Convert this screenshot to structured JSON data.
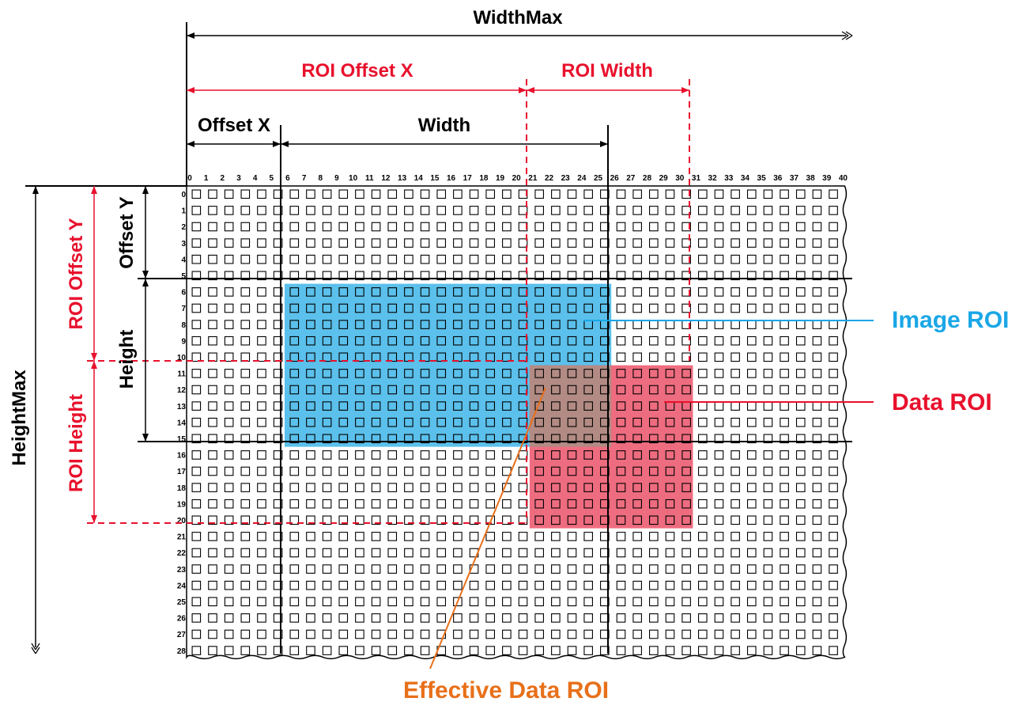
{
  "dimensions": {
    "width_max": "WidthMax",
    "height_max": "HeightMax",
    "offset_x": "Offset X",
    "offset_y": "Offset Y",
    "width": "Width",
    "height": "Height",
    "roi_offset_x": "ROI Offset X",
    "roi_offset_y": "ROI Offset Y",
    "roi_width": "ROI Width",
    "roi_height": "ROI Height"
  },
  "legend": {
    "image_roi": "Image ROI",
    "data_roi": "Data ROI",
    "effective_data_roi": "Effective Data ROI"
  },
  "grid": {
    "columns": 41,
    "rows": 29,
    "offset_x": 6,
    "offset_y": 6,
    "width": 20,
    "height": 10,
    "roi_offset_x": 21,
    "roi_offset_y": 11,
    "roi_width": 10,
    "roi_height": 10
  },
  "colors": {
    "image_roi": "#5bc0eb",
    "data_roi": "#ee6c7f",
    "effective_roi": "#b28b84",
    "red_line": "#e8112d",
    "blue_line": "#1aa7e6",
    "orange_line": "#e8701a",
    "black": "#000000"
  }
}
